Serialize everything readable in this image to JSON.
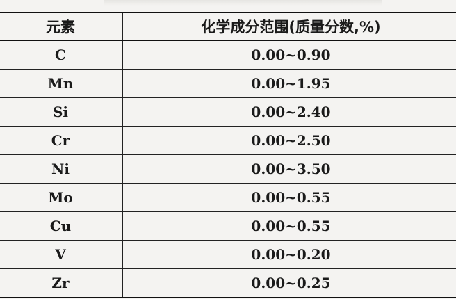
{
  "table": {
    "headers": [
      "元素",
      "化学成分范围(质量分数,%)"
    ],
    "rows": [
      [
        "C",
        "0.00~0.90"
      ],
      [
        "Mn",
        "0.00~1.95"
      ],
      [
        "Si",
        "0.00~2.40"
      ],
      [
        "Cr",
        "0.00~2.50"
      ],
      [
        "Ni",
        "0.00~3.50"
      ],
      [
        "Mo",
        "0.00~0.55"
      ],
      [
        "Cu",
        "0.00~0.55"
      ],
      [
        "V",
        "0.00~0.20"
      ],
      [
        "Zr",
        "0.00~0.25"
      ]
    ]
  }
}
